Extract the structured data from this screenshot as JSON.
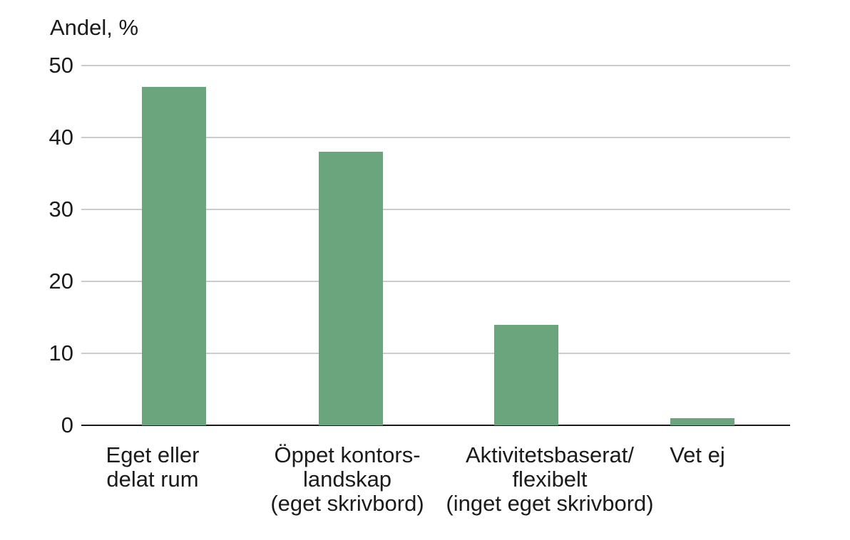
{
  "chart_data": {
    "type": "bar",
    "ylabel": "Andel, %",
    "categories": [
      {
        "label": "Eget eller delat rum",
        "lines": [
          "Eget eller",
          "delat rum"
        ]
      },
      {
        "label": "Öppet kontorslandskap (eget skrivbord)",
        "lines": [
          "Öppet kontors-",
          "landskap",
          "(eget skrivbord)"
        ]
      },
      {
        "label": "Aktivitetsbaserat/flexibelt (inget eget skrivbord)",
        "lines": [
          "Aktivitetsbaserat/",
          "flexibelt",
          "(inget eget skrivbord)"
        ]
      },
      {
        "label": "Vet ej",
        "lines": [
          "Vet ej"
        ]
      }
    ],
    "values": [
      47,
      38,
      14,
      1
    ],
    "yticks": [
      0,
      10,
      20,
      30,
      40,
      50
    ],
    "ylim": [
      0,
      50
    ],
    "grid": true,
    "legend": false,
    "bar_color": "#6aa57e",
    "gridline_color": "#cccccc",
    "axis_line_color": "#1b1b1b",
    "text_color": "#1b1b1b"
  }
}
